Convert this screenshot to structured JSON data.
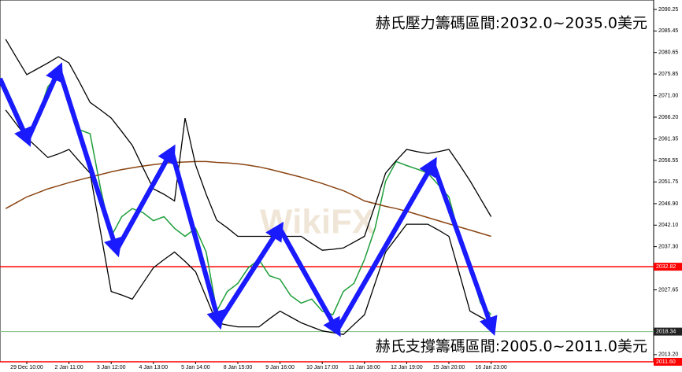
{
  "chart_data": {
    "type": "line",
    "annotations": [
      "赫氏壓力籌碼區間:2032.0~2035.0美元",
      "赫氏支撐籌碼區間:2005.0~2011.0美元"
    ],
    "watermark": "WikiFX",
    "categories": [
      null,
      null,
      "29 Dec 10:00",
      null,
      null,
      null,
      "2 Jan 11:00",
      null,
      null,
      null,
      "3 Jan 12:00",
      null,
      null,
      null,
      "4 Jan 13:00",
      null,
      null,
      null,
      "5 Jan 14:00",
      null,
      null,
      null,
      "8 Jan 15:00",
      null,
      null,
      null,
      "9 Jan 16:00",
      null,
      null,
      null,
      "10 Jan 17:00",
      null,
      null,
      null,
      "11 Jan 18:00",
      null,
      null,
      null,
      "12 Jan 19:00",
      null,
      null,
      null,
      "15 Jan 20:00",
      null,
      null,
      null,
      "16 Jan 23:00"
    ],
    "series": [
      {
        "color": "#1f9e3a",
        "width": 1.5,
        "values": [
          2073.0,
          2067.8,
          2062.5,
          2066.0,
          2073.0,
          2075.7,
          2069.5,
          2063.4,
          2062.5,
          2050.2,
          2039.6,
          2044.0,
          2045.8,
          2044.9,
          2043.1,
          2044.0,
          2041.4,
          2039.6,
          2041.4,
          2036.1,
          2022.9,
          2027.3,
          2029.1,
          2032.6,
          2034.4,
          2030.8,
          2030.0,
          2026.4,
          2024.7,
          2025.6,
          2022.9,
          2022.1,
          2027.3,
          2029.1,
          2034.4,
          2041.4,
          2051.9,
          2056.3,
          2055.4,
          2054.6,
          2053.7,
          2051.1,
          2048.4,
          2039.6,
          2032.6,
          2024.7,
          2022.1
        ]
      },
      {
        "color": "#8b4513",
        "width": 1.5,
        "values": [
          2045.8,
          2047.1,
          2048.4,
          2049.3,
          2050.2,
          2050.9,
          2051.6,
          2052.2,
          2052.8,
          2053.4,
          2054.0,
          2054.5,
          2054.9,
          2055.3,
          2055.6,
          2055.9,
          2056.1,
          2056.2,
          2056.3,
          2056.3,
          2056.1,
          2056.0,
          2055.8,
          2055.5,
          2055.1,
          2054.6,
          2054.0,
          2053.4,
          2052.8,
          2052.1,
          2051.4,
          2050.6,
          2049.8,
          2048.7,
          2047.5,
          2046.9,
          2046.3,
          2045.8,
          2045.2,
          2044.5,
          2043.8,
          2043.1,
          2042.4,
          2041.7,
          2041.0,
          2040.3,
          2039.6
        ]
      },
      {
        "color": "#000000",
        "width": 1.3,
        "values": [
          2083.6,
          2079.6,
          2075.7,
          2077.0,
          2078.3,
          2079.7,
          2078.3,
          2074.0,
          2069.5,
          2067.8,
          2066.0,
          2063.0,
          2059.9,
          2055.0,
          2050.2,
          2049.0,
          2047.5,
          2066.0,
          2055.5,
          2049.0,
          2043.2,
          2041.5,
          2039.6,
          2039.6,
          2039.6,
          2039.6,
          2039.6,
          2039.6,
          2039.6,
          2038.0,
          2036.5,
          2036.7,
          2037.0,
          2038.3,
          2039.6,
          2046.5,
          2053.7,
          2056.5,
          2059.0,
          2058.5,
          2058.1,
          2058.5,
          2059.0,
          2055.6,
          2052.0,
          2048.0,
          2044.0
        ]
      },
      {
        "color": "#000000",
        "width": 1.3,
        "values": [
          2067.8,
          2064.7,
          2061.6,
          2059.4,
          2057.2,
          2058.0,
          2059.0,
          2056.3,
          2053.7,
          2040.5,
          2027.3,
          2026.5,
          2025.6,
          2029.1,
          2032.6,
          2034.4,
          2036.1,
          2034.0,
          2031.7,
          2026.0,
          2020.3,
          2019.8,
          2019.4,
          2019.4,
          2019.4,
          2021.2,
          2022.9,
          2021.6,
          2020.3,
          2019.4,
          2018.5,
          2018.1,
          2017.7,
          2019.9,
          2022.1,
          2029.1,
          2036.1,
          2039.2,
          2042.3,
          2042.3,
          2042.3,
          2041.0,
          2039.6,
          2031.3,
          2022.9,
          2021.6,
          2020.3
        ]
      }
    ],
    "hlines": [
      {
        "value": 2032.82,
        "color": "#ff0000",
        "box": "#ff0000"
      },
      {
        "value": 2018.34,
        "color": "#7fbf7f",
        "box": "#222222"
      },
      {
        "value": {
          "value": 2011.6,
          "label": "2011.60"
        },
        "color": "#ff0000",
        "box": "#ff0000"
      }
    ],
    "ylim": [
      2011.6,
      2092.36
    ],
    "yticks": [
      2090.25,
      2085.45,
      2080.65,
      2075.85,
      {
        "value": 2071.0,
        "label": "2071.00"
      },
      {
        "value": 2066.2,
        "label": "2066.20"
      },
      2061.35,
      2056.55,
      2051.75,
      {
        "value": 2046.9,
        "label": "2046.90"
      },
      {
        "value": 2042.1,
        "label": "2042.10"
      },
      {
        "value": 2037.3,
        "label": "2037.30"
      },
      2027.65,
      {
        "value": 2013.2,
        "label": "2013.20"
      }
    ]
  }
}
